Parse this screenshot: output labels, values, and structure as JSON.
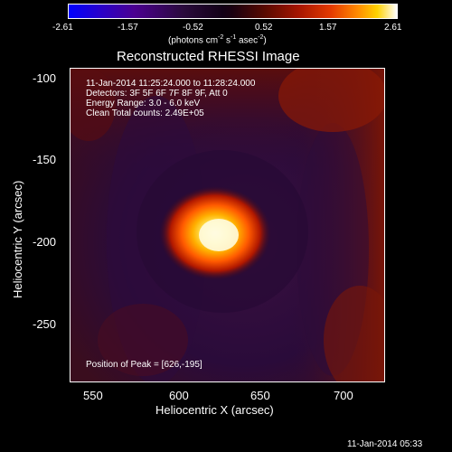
{
  "colorbar": {
    "tick_labels": [
      "-2.61",
      "-1.57",
      "-0.52",
      "0.52",
      "1.57",
      "2.61"
    ],
    "units_prefix": "(photons cm",
    "units_exp1": "-2",
    "units_mid": " s",
    "units_exp2": "-1",
    "units_suffix": " asec",
    "units_exp3": "-2",
    "units_close": ")"
  },
  "title": "Reconstructed RHESSI Image",
  "annotations": {
    "line1": "11-Jan-2014 11:25:24.000 to 11:28:24.000",
    "line2": "Detectors: 3F 5F 6F 7F 8F 9F, Att 0",
    "line3": "Energy Range: 3.0 - 6.0 keV",
    "line4": "Clean    Total counts: 2.49E+05",
    "peak": "Position of Peak = [626,-195]"
  },
  "chart_data": {
    "type": "heatmap",
    "title": "Reconstructed RHESSI Image",
    "xlabel": "Heliocentric X (arcsec)",
    "ylabel": "Heliocentric Y (arcsec)",
    "xlim": [
      533,
      724
    ],
    "ylim": [
      -285,
      -95
    ],
    "x_ticks": [
      "550",
      "600",
      "650",
      "700"
    ],
    "x_tick_values": [
      550,
      600,
      650,
      700
    ],
    "y_ticks": [
      "-100",
      "-150",
      "-200",
      "-250"
    ],
    "y_tick_values": [
      -100,
      -150,
      -200,
      -250
    ],
    "colorbar_range": [
      -2.61,
      2.61
    ],
    "peak_position": [
      626,
      -195
    ]
  },
  "footer_timestamp": "11-Jan-2014 05:33"
}
